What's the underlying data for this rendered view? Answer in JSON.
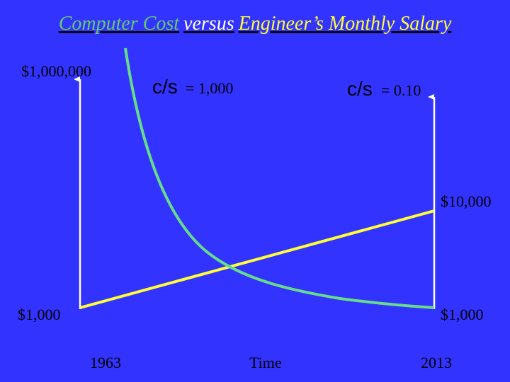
{
  "title": {
    "part1": "Computer Cost",
    "part2": "versus",
    "part3": "Engineer’s Monthly Salary"
  },
  "left_axis": {
    "top_label": "$1,000,000",
    "bottom_label": "$1,000"
  },
  "right_axis": {
    "top_label": "$10,000",
    "bottom_label": "$1,000"
  },
  "annotations": [
    {
      "symbol": "c/s",
      "text": "= 1,000"
    },
    {
      "symbol": "c/s",
      "text": "= 0.10"
    }
  ],
  "x_labels": {
    "start": "1963",
    "middle": "Time",
    "end": "2013"
  }
}
